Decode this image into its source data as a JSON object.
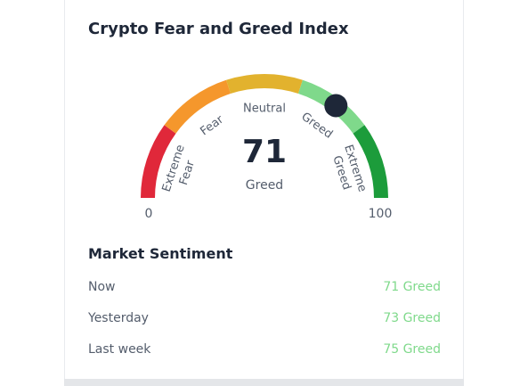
{
  "card": {
    "title": "Crypto Fear and Greed Index"
  },
  "gauge": {
    "value": 71,
    "value_text": "71",
    "classification": "Greed",
    "min_label": "0",
    "max_label": "100",
    "zones": [
      {
        "line1": "Extreme",
        "line2": "Fear",
        "color": "#e0283a"
      },
      {
        "line1": "Fear",
        "line2": "",
        "color": "#f5972c"
      },
      {
        "line1": "Neutral",
        "line2": "",
        "color": "#e2b22e"
      },
      {
        "line1": "Greed",
        "line2": "",
        "color": "#7fd98b"
      },
      {
        "line1": "Extreme",
        "line2": "Greed",
        "color": "#1c9c3b"
      }
    ],
    "needle_color": "#1e2738"
  },
  "sentiment": {
    "title": "Market Sentiment",
    "rows": [
      {
        "label": "Now",
        "value": "71 Greed"
      },
      {
        "label": "Yesterday",
        "value": "73 Greed"
      },
      {
        "label": "Last week",
        "value": "75 Greed"
      }
    ],
    "value_color": "#7fd98b"
  }
}
